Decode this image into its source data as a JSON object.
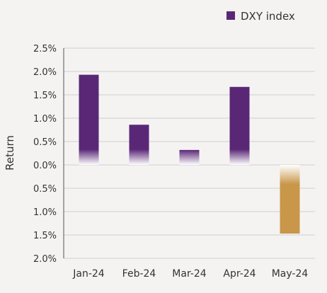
{
  "chart_data": {
    "type": "bar",
    "categories": [
      "Jan-24",
      "Feb-24",
      "Mar-24",
      "Apr-24",
      "May-24"
    ],
    "series": [
      {
        "name": "DXY index",
        "values": [
          1.93,
          0.86,
          0.32,
          1.67,
          -1.47
        ]
      }
    ],
    "ylabel": "Return",
    "xlabel": "",
    "ylim": [
      -2.0,
      2.5
    ],
    "yticks": [
      2.5,
      2.0,
      1.5,
      1.0,
      0.5,
      0.0,
      -0.5,
      -1.0,
      -1.5,
      -2.0
    ],
    "ytick_labels": [
      "2.5%",
      "2.0%",
      "1.5%",
      "1.0%",
      "0.5%",
      "0.0%",
      "0.5%",
      "1.0%",
      "1.5%",
      "2.0%"
    ],
    "grid": true,
    "legend": {
      "position": "top-right",
      "label": "DXY index"
    },
    "colors": {
      "positive": "#5a2777",
      "negative": "#c8974a",
      "grid": "#cfcfcf",
      "axis": "#555555"
    }
  }
}
